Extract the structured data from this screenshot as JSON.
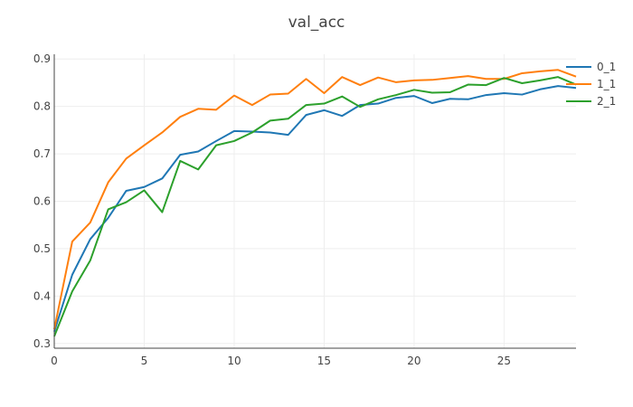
{
  "chart_data": {
    "type": "line",
    "title": "val_acc",
    "xlabel": "",
    "ylabel": "",
    "xlim": [
      0,
      29
    ],
    "ylim": [
      0.29,
      0.91
    ],
    "xticks": [
      0,
      5,
      10,
      15,
      20,
      25
    ],
    "yticks": [
      0.3,
      0.4,
      0.5,
      0.6,
      0.7,
      0.8,
      0.9
    ],
    "xtick_labels": [
      "0",
      "5",
      "10",
      "15",
      "20",
      "25"
    ],
    "ytick_labels": [
      "0.3",
      "0.4",
      "0.5",
      "0.6",
      "0.7",
      "0.8",
      "0.9"
    ],
    "grid": true,
    "legend": "top-right",
    "x": [
      0,
      1,
      2,
      3,
      4,
      5,
      6,
      7,
      8,
      9,
      10,
      11,
      12,
      13,
      14,
      15,
      16,
      17,
      18,
      19,
      20,
      21,
      22,
      23,
      24,
      25,
      26,
      27,
      28,
      29
    ],
    "series": [
      {
        "name": "0_1",
        "color": "#1f77b4",
        "values": [
          0.325,
          0.445,
          0.52,
          0.565,
          0.622,
          0.63,
          0.648,
          0.698,
          0.705,
          0.727,
          0.748,
          0.747,
          0.745,
          0.74,
          0.782,
          0.792,
          0.78,
          0.803,
          0.806,
          0.818,
          0.822,
          0.807,
          0.816,
          0.815,
          0.824,
          0.828,
          0.825,
          0.836,
          0.843,
          0.839
        ]
      },
      {
        "name": "1_1",
        "color": "#ff7f0e",
        "values": [
          0.33,
          0.515,
          0.555,
          0.64,
          0.69,
          0.718,
          0.745,
          0.778,
          0.795,
          0.793,
          0.823,
          0.803,
          0.825,
          0.827,
          0.858,
          0.828,
          0.862,
          0.845,
          0.861,
          0.851,
          0.855,
          0.856,
          0.86,
          0.864,
          0.858,
          0.858,
          0.87,
          0.874,
          0.877,
          0.863
        ]
      },
      {
        "name": "2_1",
        "color": "#2ca02c",
        "values": [
          0.315,
          0.41,
          0.475,
          0.583,
          0.598,
          0.623,
          0.577,
          0.685,
          0.667,
          0.718,
          0.727,
          0.745,
          0.77,
          0.774,
          0.803,
          0.806,
          0.821,
          0.799,
          0.815,
          0.824,
          0.835,
          0.829,
          0.83,
          0.846,
          0.845,
          0.86,
          0.849,
          0.855,
          0.862,
          0.846
        ]
      }
    ]
  }
}
